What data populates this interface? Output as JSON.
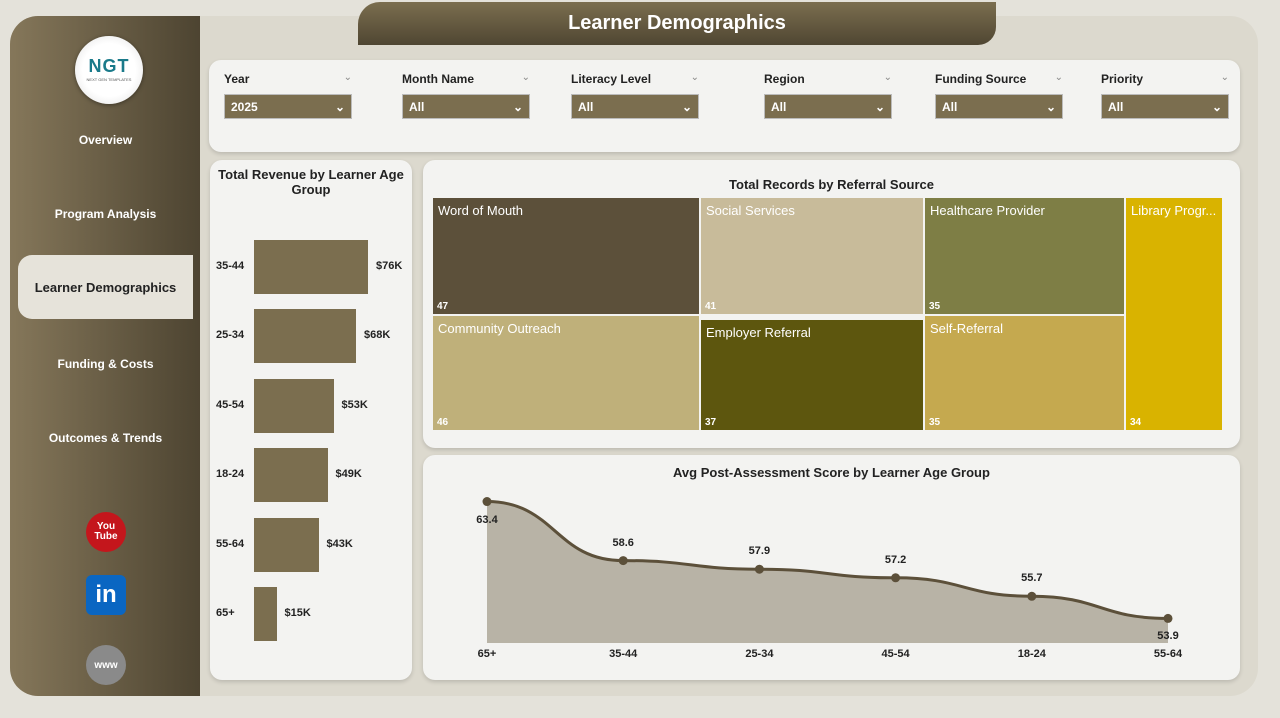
{
  "title": "Learner Demographics",
  "logo": {
    "text": "NGT",
    "sub": "NEXT GEN TEMPLATES"
  },
  "nav": [
    {
      "label": "Overview"
    },
    {
      "label": "Program Analysis"
    },
    {
      "label": "Learner Demographics",
      "active": true
    },
    {
      "label": "Funding & Costs"
    },
    {
      "label": "Outcomes & Trends"
    }
  ],
  "social": [
    {
      "icon": "youtube-icon",
      "label": "You Tube"
    },
    {
      "icon": "linkedin-icon",
      "label": "in"
    },
    {
      "icon": "globe-icon",
      "label": "www"
    }
  ],
  "filters": [
    {
      "label": "Year",
      "value": "2025"
    },
    {
      "label": "Month Name",
      "value": "All"
    },
    {
      "label": "Literacy Level",
      "value": "All"
    },
    {
      "label": "Region",
      "value": "All"
    },
    {
      "label": "Funding Source",
      "value": "All"
    },
    {
      "label": "Priority",
      "value": "All"
    }
  ],
  "chart_data": [
    {
      "type": "bar",
      "orientation": "horizontal",
      "title": "Total Revenue by Learner Age Group",
      "categories": [
        "35-44",
        "25-34",
        "45-54",
        "18-24",
        "55-64",
        "65+"
      ],
      "values": [
        76,
        68,
        53,
        49,
        43,
        15
      ],
      "unit": "K",
      "labels": [
        "$76K",
        "$68K",
        "$53K",
        "$49K",
        "$43K",
        "$15K"
      ],
      "color": "#7b6e4f"
    },
    {
      "type": "treemap",
      "title": "Total Records by Referral Source",
      "items": [
        {
          "name": "Word of Mouth",
          "value": 47,
          "color": "#5c503a"
        },
        {
          "name": "Social Services",
          "value": 41,
          "color": "#c8bb9a"
        },
        {
          "name": "Healthcare Provider",
          "value": 35,
          "color": "#7e7e45"
        },
        {
          "name": "Library Progr...",
          "value": 34,
          "color": "#d9b300"
        },
        {
          "name": "Community Outreach",
          "value": 46,
          "color": "#bfb07a"
        },
        {
          "name": "Employer Referral",
          "value": 37,
          "color": "#5d560e"
        },
        {
          "name": "Self-Referral",
          "value": 35,
          "color": "#c5a94f"
        }
      ]
    },
    {
      "type": "area",
      "title": "Avg Post-Assessment Score by Learner Age Group",
      "categories": [
        "65+",
        "35-44",
        "25-34",
        "45-54",
        "18-24",
        "55-64"
      ],
      "values": [
        63.4,
        58.6,
        57.9,
        57.2,
        55.7,
        53.9
      ],
      "line_color": "#5c503a",
      "fill_color": "#b8b3a6"
    }
  ]
}
